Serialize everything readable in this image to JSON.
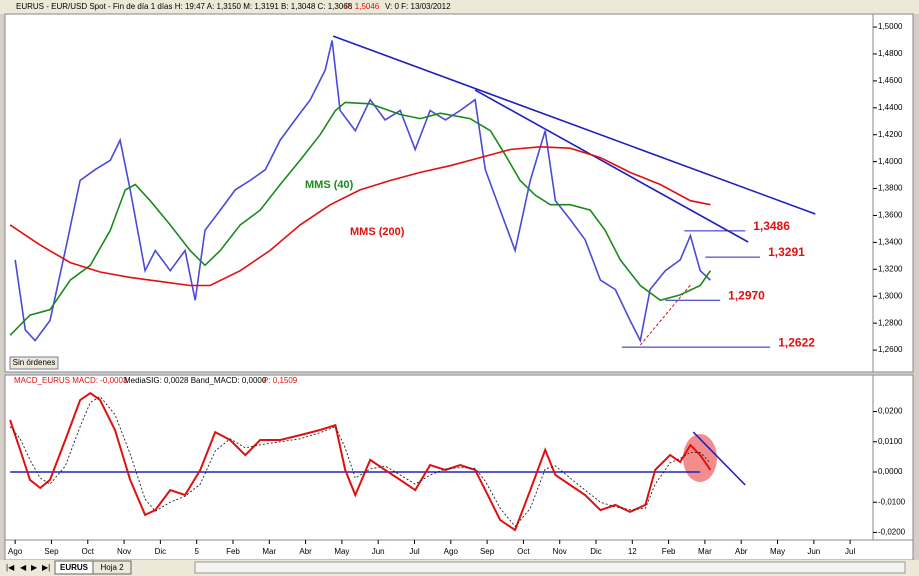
{
  "header": {
    "text": "EURUS - EUR/USD Spot - Fin de día 1 días  H: 19:47  A: 1,3150  M: 1,3191  B: 1,3048  C: 1,3068",
    "p": "P: 1,5046",
    "rest": "V: 0  F: 13/03/2012"
  },
  "macd_header": {
    "text": "MACD_EURUS  MACD: -0,0003",
    "mid": "MediaSIG: 0,0028  Band_MACD: 0,0000",
    "p": "P: 0,1509"
  },
  "ui": {
    "orders_label": "Sin órdenes",
    "tabs": [
      "EURUS",
      "Hoja 2"
    ]
  },
  "chart_data": [
    {
      "type": "line",
      "grid": false,
      "xlim": [
        -0.28,
        23.63
      ],
      "ylim": [
        1.2437,
        1.5097
      ],
      "yticks": [
        {
          "value": 1.26,
          "label": "1,2600"
        },
        {
          "value": 1.28,
          "label": "1,2800"
        },
        {
          "value": 1.3,
          "label": "1,3000"
        },
        {
          "value": 1.32,
          "label": "1,3200"
        },
        {
          "value": 1.34,
          "label": "1,3400"
        },
        {
          "value": 1.36,
          "label": "1,3600"
        },
        {
          "value": 1.38,
          "label": "1,3800"
        },
        {
          "value": 1.4,
          "label": "1,4000"
        },
        {
          "value": 1.42,
          "label": "1,4200"
        },
        {
          "value": 1.44,
          "label": "1,4400"
        },
        {
          "value": 1.46,
          "label": "1,4600"
        },
        {
          "value": 1.48,
          "label": "1,4800"
        },
        {
          "value": 1.5,
          "label": "1,5000"
        }
      ],
      "series": [
        {
          "color": "#4a4ad8",
          "x": [
            0,
            0.28,
            0.55,
            0.96,
            1.38,
            1.79,
            2.2,
            2.62,
            2.89,
            3.17,
            3.58,
            3.86,
            4.27,
            4.68,
            4.96,
            5.23,
            5.65,
            6.06,
            6.47,
            6.89,
            7.3,
            7.71,
            8.13,
            8.54,
            8.73,
            8.95,
            9.37,
            9.78,
            10.19,
            10.61,
            11.02,
            11.43,
            11.85,
            12.26,
            12.67,
            12.95,
            13.36,
            13.77,
            14.19,
            14.6,
            14.88,
            15.29,
            15.7,
            16.12,
            16.53,
            16.94,
            17.22,
            17.49,
            17.91,
            18.32,
            18.6,
            18.87,
            19.15
          ],
          "values": [
            1.327,
            1.275,
            1.267,
            1.282,
            1.334,
            1.386,
            1.394,
            1.401,
            1.416,
            1.379,
            1.319,
            1.334,
            1.319,
            1.334,
            1.297,
            1.349,
            1.364,
            1.379,
            1.386,
            1.394,
            1.416,
            1.431,
            1.446,
            1.468,
            1.49,
            1.438,
            1.423,
            1.446,
            1.431,
            1.438,
            1.409,
            1.438,
            1.431,
            1.438,
            1.446,
            1.394,
            1.364,
            1.334,
            1.386,
            1.423,
            1.371,
            1.357,
            1.342,
            1.312,
            1.305,
            1.282,
            1.267,
            1.305,
            1.319,
            1.327,
            1.345,
            1.319,
            1.312
          ]
        },
        {
          "name": "MMS (40)",
          "color": "#1a8a1a",
          "x": [
            -0.14,
            0.41,
            0.96,
            1.52,
            2.07,
            2.62,
            3.03,
            3.31,
            3.72,
            4.27,
            4.82,
            5.23,
            5.65,
            6.2,
            6.75,
            7.3,
            7.85,
            8.4,
            8.82,
            9.09,
            9.78,
            10.61,
            11.16,
            11.71,
            12.53,
            13.09,
            13.5,
            13.91,
            14.33,
            14.74,
            15.29,
            15.84,
            16.25,
            16.67,
            17.22,
            17.77,
            18.32,
            18.87,
            19.15
          ],
          "values": [
            1.271,
            1.286,
            1.29,
            1.312,
            1.323,
            1.349,
            1.379,
            1.383,
            1.371,
            1.353,
            1.334,
            1.323,
            1.334,
            1.353,
            1.364,
            1.383,
            1.401,
            1.42,
            1.438,
            1.444,
            1.443,
            1.435,
            1.432,
            1.436,
            1.432,
            1.423,
            1.405,
            1.386,
            1.375,
            1.368,
            1.368,
            1.364,
            1.349,
            1.327,
            1.308,
            1.297,
            1.301,
            1.308,
            1.319
          ]
        },
        {
          "name": "MMS (200)",
          "color": "#e01010",
          "x": [
            -0.14,
            0.69,
            1.52,
            2.34,
            3.17,
            3.99,
            4.82,
            5.37,
            6.2,
            7.02,
            7.85,
            8.68,
            9.5,
            10.33,
            11.16,
            11.98,
            12.81,
            13.64,
            14.46,
            15.29,
            16.12,
            16.94,
            17.77,
            18.6,
            19.15
          ],
          "values": [
            1.353,
            1.338,
            1.325,
            1.318,
            1.314,
            1.311,
            1.308,
            1.308,
            1.319,
            1.334,
            1.353,
            1.368,
            1.379,
            1.386,
            1.392,
            1.397,
            1.403,
            1.409,
            1.411,
            1.41,
            1.403,
            1.392,
            1.383,
            1.371,
            1.368
          ]
        }
      ],
      "trendlines": [
        {
          "color": "#2020c0",
          "x": [
            8.76,
            22.04
          ],
          "y": [
            1.4933,
            1.3611
          ]
        },
        {
          "color": "#2020c0",
          "x": [
            12.67,
            20.19
          ],
          "y": [
            1.4532,
            1.3403
          ]
        },
        {
          "color": "#e01010",
          "dashed": true,
          "x": [
            17.22,
            18.6
          ],
          "y": [
            1.2637,
            1.3083
          ]
        }
      ],
      "levels": [
        {
          "value": 1.3486,
          "label": "1,3486",
          "x": [
            18.43,
            20.11
          ]
        },
        {
          "value": 1.3291,
          "label": "1,3291",
          "x": [
            19.01,
            20.52
          ]
        },
        {
          "value": 1.297,
          "label": "1,2970",
          "x": [
            17.91,
            19.42
          ]
        },
        {
          "value": 1.2622,
          "label": "1,2622",
          "x": [
            16.71,
            20.8
          ]
        }
      ]
    },
    {
      "type": "line",
      "grid": false,
      "xlim": [
        -0.28,
        23.63
      ],
      "ylim": [
        -0.0225,
        0.0278
      ],
      "yticks": [
        {
          "value": 0.02,
          "label": "0,0200"
        },
        {
          "value": 0.01,
          "label": "0,0100"
        },
        {
          "value": 0,
          "label": "0,0000"
        },
        {
          "value": -0.01,
          "label": "-0,0100"
        },
        {
          "value": -0.02,
          "label": "-0,0200"
        }
      ],
      "xticks": [
        {
          "value": 0,
          "label": "Ago"
        },
        {
          "value": 1,
          "label": "Sep"
        },
        {
          "value": 2,
          "label": "Oct"
        },
        {
          "value": 3,
          "label": "Nov"
        },
        {
          "value": 4,
          "label": "Dic"
        },
        5,
        {
          "value": 6,
          "label": "Feb"
        },
        {
          "value": 7,
          "label": "Mar"
        },
        {
          "value": 8,
          "label": "Abr"
        },
        {
          "value": 9,
          "label": "May"
        },
        {
          "value": 10,
          "label": "Jun"
        },
        {
          "value": 11,
          "label": "Jul"
        },
        {
          "value": 12,
          "label": "Ago"
        },
        {
          "value": 13,
          "label": "Sep"
        },
        {
          "value": 14,
          "label": "Oct"
        },
        {
          "value": 15,
          "label": "Nov"
        },
        {
          "value": 16,
          "label": "Dic"
        },
        {
          "value": 17,
          "label": "12"
        },
        {
          "value": 18,
          "label": "Feb"
        },
        {
          "value": 19,
          "label": "Mar"
        },
        {
          "value": 20,
          "label": "Abr"
        },
        {
          "value": 21,
          "label": "May"
        },
        {
          "value": 22,
          "label": "Jun"
        },
        {
          "value": 23,
          "label": "Jul"
        }
      ],
      "series": [
        {
          "color": "#e01010",
          "x": [
            -0.14,
            0.14,
            0.41,
            0.69,
            0.96,
            1.38,
            1.79,
            2.07,
            2.34,
            2.75,
            3.17,
            3.58,
            3.86,
            4.27,
            4.68,
            5.1,
            5.51,
            5.92,
            6.34,
            6.75,
            7.3,
            7.85,
            8.4,
            8.82,
            9.09,
            9.37,
            9.78,
            10.19,
            10.61,
            11.02,
            11.43,
            11.85,
            12.26,
            12.67,
            12.95,
            13.36,
            13.77,
            14.19,
            14.6,
            14.88,
            15.29,
            15.7,
            16.12,
            16.53,
            16.94,
            17.36,
            17.63,
            18.04,
            18.32,
            18.6,
            18.87,
            19.15
          ],
          "values": [
            0.0172,
            0.0073,
            -0.0026,
            -0.0053,
            -0.0026,
            0.0106,
            0.0238,
            0.0261,
            0.0238,
            0.0139,
            -0.0026,
            -0.0142,
            -0.0126,
            -0.006,
            -0.0076,
            0.0007,
            0.0132,
            0.0106,
            0.0056,
            0.0106,
            0.0106,
            0.0122,
            0.0139,
            0.0155,
            0.0007,
            -0.0076,
            0.004,
            0.0007,
            -0.0026,
            -0.006,
            0.0023,
            0.0007,
            0.0023,
            0.0007,
            -0.006,
            -0.0159,
            -0.0192,
            -0.006,
            0.0073,
            -0.001,
            -0.0043,
            -0.0076,
            -0.0126,
            -0.0109,
            -0.0132,
            -0.0109,
            0.0007,
            0.0056,
            0.0033,
            0.0089,
            0.0056,
            0.0007
          ]
        },
        {
          "color": "#222222",
          "dashed": true,
          "x": [
            -0.14,
            0.14,
            0.41,
            0.69,
            0.96,
            1.38,
            1.79,
            2.07,
            2.34,
            2.75,
            3.17,
            3.58,
            3.86,
            4.27,
            4.68,
            5.1,
            5.51,
            5.92,
            6.34,
            6.75,
            7.3,
            7.85,
            8.4,
            8.82,
            9.09,
            9.37,
            9.78,
            10.19,
            10.61,
            11.02,
            11.43,
            11.85,
            12.26,
            12.67,
            12.95,
            13.36,
            13.77,
            14.19,
            14.6,
            14.88,
            15.29,
            15.7,
            16.12,
            16.53,
            16.94,
            17.36,
            17.63,
            18.04,
            18.32,
            18.6,
            18.87,
            19.15
          ],
          "values": [
            0.015,
            0.011,
            0.004,
            -0.002,
            -0.004,
            0.002,
            0.015,
            0.023,
            0.025,
            0.019,
            0.006,
            -0.009,
            -0.013,
            -0.01,
            -0.008,
            -0.004,
            0.007,
            0.011,
            0.008,
            0.009,
            0.01,
            0.011,
            0.013,
            0.015,
            0.008,
            -0.002,
            0.001,
            0.002,
            -0.001,
            -0.004,
            -0.001,
            0.001,
            0.0015,
            0.0012,
            -0.003,
            -0.012,
            -0.018,
            -0.012,
            0.001,
            0.002,
            -0.002,
            -0.006,
            -0.01,
            -0.0115,
            -0.0125,
            -0.012,
            -0.004,
            0.003,
            0.0045,
            0.0065,
            0.0065,
            0.003
          ]
        }
      ],
      "trendlines": [
        {
          "color": "#2020c0",
          "x": [
            -0.14,
            18.87
          ],
          "y": [
            0,
            0
          ]
        },
        {
          "color": "#2020c0",
          "x": [
            18.68,
            20.11
          ],
          "y": [
            0.0132,
            -0.0043
          ]
        }
      ]
    }
  ]
}
